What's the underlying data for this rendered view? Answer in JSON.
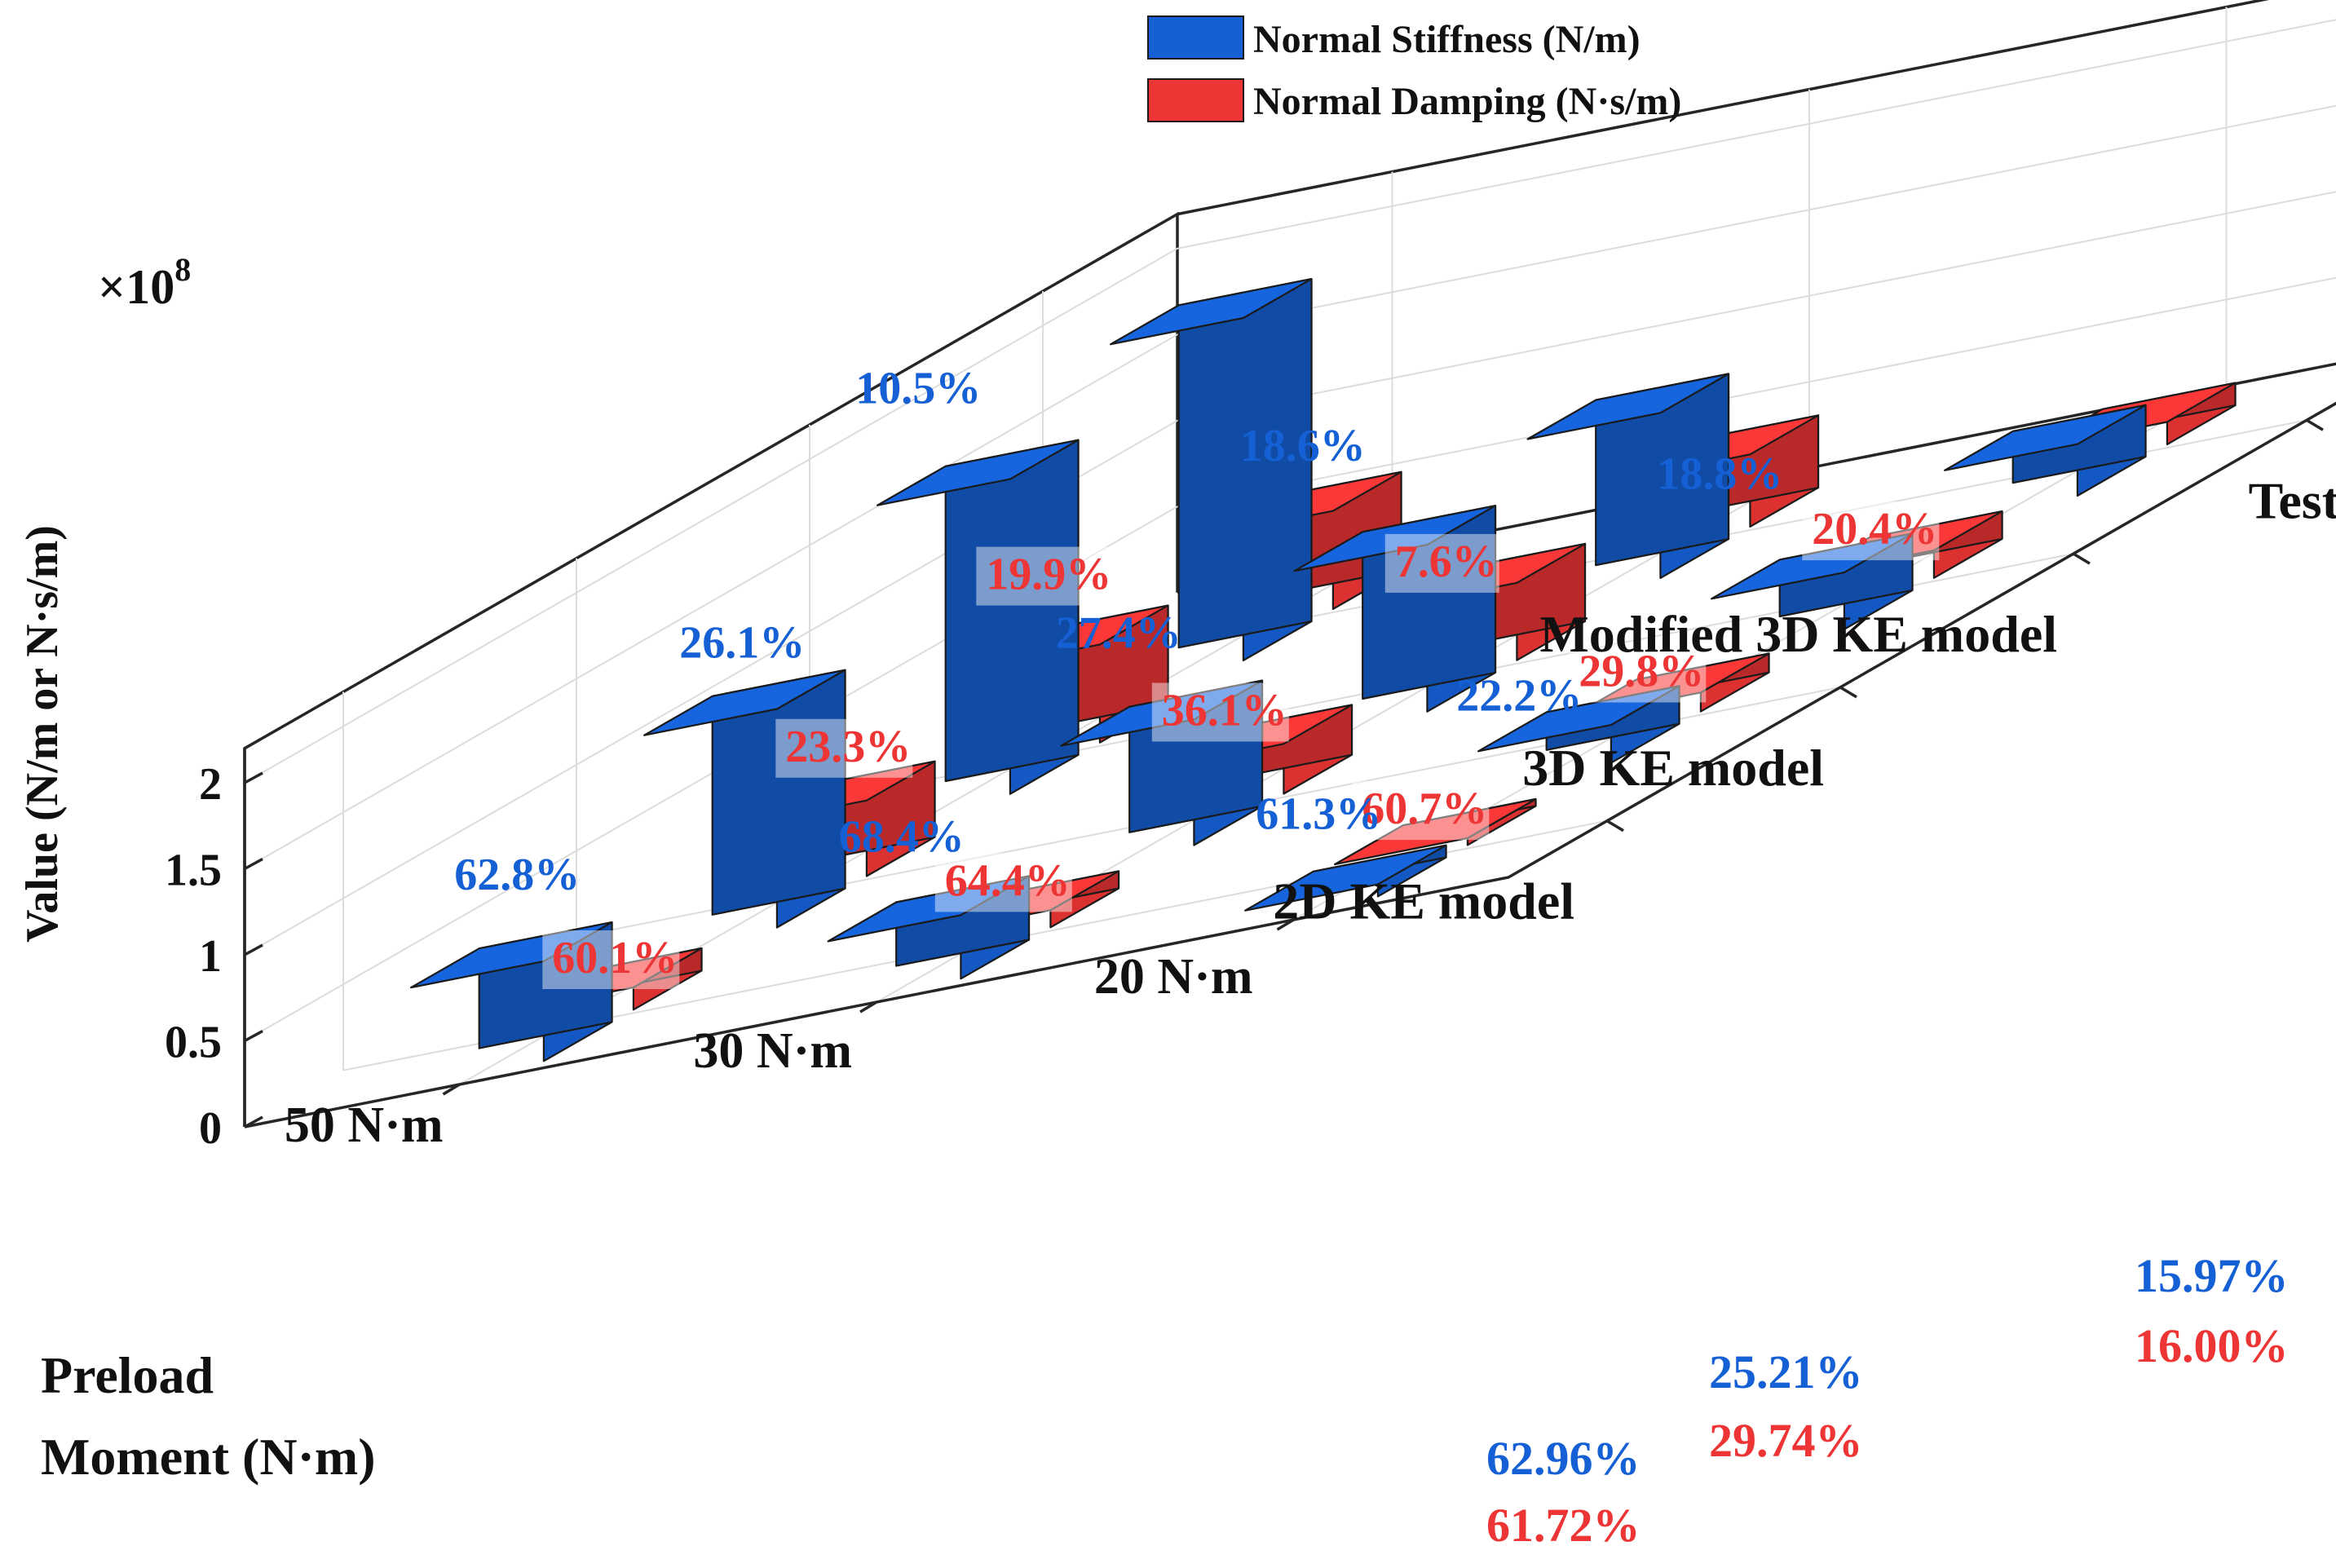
{
  "chart_data": {
    "type": "bar3d",
    "title": "",
    "zlabel": "Value (N/m or N·s/m)",
    "z_exponent_label": "×10",
    "z_exponent_power": "8",
    "z_scale": 100000000,
    "zlim": [
      0,
      2.2
    ],
    "z_ticks": [
      {
        "value": 0,
        "label": "0"
      },
      {
        "value": 0.5,
        "label": "0.5"
      },
      {
        "value": 1,
        "label": "1"
      },
      {
        "value": 1.5,
        "label": "1.5"
      },
      {
        "value": 2,
        "label": "2"
      }
    ],
    "preload_axis": {
      "label_line1": "Preload",
      "label_line2": "Moment (N·m)",
      "categories": [
        "50 N·m",
        "30 N·m",
        "20 N·m"
      ]
    },
    "model_axis": {
      "categories": [
        "2D KE model",
        "3D KE model",
        "Modified 3D KE model",
        "Test"
      ]
    },
    "legend": {
      "position": "top",
      "entries": [
        {
          "name": "Normal Stiffness (N/m)",
          "color": "#1560d4"
        },
        {
          "name": "Normal Damping (N·s/m)",
          "color": "#ee3535"
        }
      ]
    },
    "series": [
      {
        "name": "Normal Stiffness (N/m)",
        "color": "#1560d4",
        "values_x1e8": [
          [
            0.58,
            1.27,
            1.83,
            1.99
          ],
          [
            0.37,
            0.73,
            0.97,
            0.96
          ],
          [
            0.07,
            0.22,
            0.33,
            0.3
          ]
        ],
        "error_labels": [
          [
            "62.8%",
            "26.1%",
            "10.5%",
            ""
          ],
          [
            "68.4%",
            "27.4%",
            "18.6%",
            ""
          ],
          [
            "61.3%",
            "22.2%",
            "18.8%",
            ""
          ]
        ]
      },
      {
        "name": "Normal Damping (N·s/m)",
        "color": "#ee3535",
        "values_x1e8": [
          [
            0.13,
            0.44,
            0.57,
            0.57
          ],
          [
            0.1,
            0.29,
            0.45,
            0.42
          ],
          [
            0.04,
            0.11,
            0.16,
            0.13
          ]
        ],
        "error_labels": [
          [
            "60.1%",
            "23.3%",
            "19.9%",
            ""
          ],
          [
            "64.4%",
            "36.1%",
            "7.6%",
            ""
          ],
          [
            "60.7%",
            "29.8%",
            "20.4%",
            ""
          ]
        ]
      }
    ],
    "model_average_errors": [
      {
        "model": "2D KE model",
        "stiffness": "62.96%",
        "damping": "61.72%"
      },
      {
        "model": "3D KE model",
        "stiffness": "25.21%",
        "damping": "29.74%"
      },
      {
        "model": "Modified 3D KE model",
        "stiffness": "15.97%",
        "damping": "16.00%"
      }
    ]
  }
}
